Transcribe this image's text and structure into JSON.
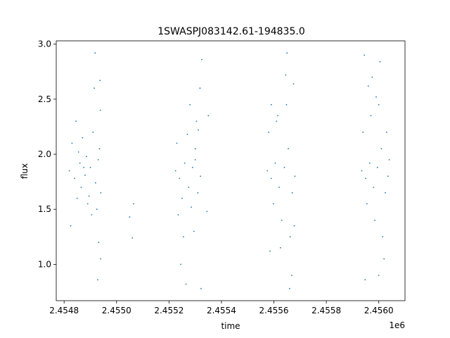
{
  "chart_data": {
    "type": "scatter",
    "title": "1SWASPJ083142.61-194835.0",
    "xlabel": "time",
    "ylabel": "flux",
    "x_offset_label": "1e6",
    "xlim": [
      2454770,
      2456100
    ],
    "ylim": [
      0.67,
      3.03
    ],
    "x_ticks": [
      2454800,
      2455000,
      2455200,
      2455400,
      2455600,
      2455800,
      2456000
    ],
    "x_tick_labels": [
      "2.4548",
      "2.4550",
      "2.4552",
      "2.4554",
      "2.4556",
      "2.4558",
      "2.4560"
    ],
    "y_ticks": [
      1.0,
      1.5,
      2.0,
      2.5,
      3.0
    ],
    "y_tick_labels": [
      "1.0",
      "1.5",
      "2.0",
      "2.5",
      "3.0"
    ],
    "grid": false,
    "marker_color": "#1f77b4",
    "series": [
      {
        "points": [
          [
            2454820,
            1.85
          ],
          [
            2454840,
            1.78
          ],
          [
            2454860,
            1.92
          ],
          [
            2454880,
            1.81
          ],
          [
            2454900,
            1.88
          ],
          [
            2454920,
            1.74
          ],
          [
            2454935,
            2.05
          ],
          [
            2454940,
            1.65
          ],
          [
            2454830,
            2.1
          ],
          [
            2454850,
            1.6
          ],
          [
            2454870,
            2.15
          ],
          [
            2454890,
            1.55
          ],
          [
            2454910,
            2.2
          ],
          [
            2454925,
            1.5
          ],
          [
            2454938,
            2.4
          ],
          [
            2454932,
            1.2
          ],
          [
            2454825,
            1.35
          ],
          [
            2454845,
            2.3
          ],
          [
            2454915,
            2.6
          ],
          [
            2454937,
            2.67
          ],
          [
            2454928,
            0.86
          ],
          [
            2454939,
            1.05
          ],
          [
            2454918,
            2.92
          ],
          [
            2454905,
            1.45
          ],
          [
            2454865,
            1.7
          ],
          [
            2454885,
            1.98
          ],
          [
            2454895,
            1.62
          ],
          [
            2454855,
            2.02
          ],
          [
            2454875,
            1.88
          ],
          [
            2454930,
            1.95
          ],
          [
            2455060,
            1.24
          ],
          [
            2455065,
            1.55
          ],
          [
            2455050,
            1.43
          ],
          [
            2455225,
            1.85
          ],
          [
            2455240,
            1.78
          ],
          [
            2455260,
            1.92
          ],
          [
            2455275,
            1.7
          ],
          [
            2455290,
            1.88
          ],
          [
            2455300,
            2.05
          ],
          [
            2455310,
            1.65
          ],
          [
            2455320,
            1.8
          ],
          [
            2455230,
            2.1
          ],
          [
            2455250,
            1.6
          ],
          [
            2455270,
            2.18
          ],
          [
            2455285,
            1.52
          ],
          [
            2455305,
            2.3
          ],
          [
            2455318,
            2.6
          ],
          [
            2455325,
            2.86
          ],
          [
            2455295,
            1.3
          ],
          [
            2455245,
            1.0
          ],
          [
            2455265,
            0.82
          ],
          [
            2455322,
            0.78
          ],
          [
            2455280,
            2.45
          ],
          [
            2455255,
            1.25
          ],
          [
            2455312,
            2.22
          ],
          [
            2455235,
            1.45
          ],
          [
            2455300,
            1.95
          ],
          [
            2455350,
            2.35
          ],
          [
            2455345,
            1.48
          ],
          [
            2455575,
            1.85
          ],
          [
            2455590,
            1.78
          ],
          [
            2455605,
            1.92
          ],
          [
            2455620,
            1.7
          ],
          [
            2455640,
            1.88
          ],
          [
            2455655,
            2.05
          ],
          [
            2455670,
            1.65
          ],
          [
            2455680,
            1.8
          ],
          [
            2455580,
            2.2
          ],
          [
            2455598,
            1.55
          ],
          [
            2455615,
            2.35
          ],
          [
            2455630,
            1.4
          ],
          [
            2455648,
            2.45
          ],
          [
            2455662,
            1.25
          ],
          [
            2455675,
            2.64
          ],
          [
            2455650,
            2.92
          ],
          [
            2455660,
            0.78
          ],
          [
            2455668,
            0.9
          ],
          [
            2455585,
            1.12
          ],
          [
            2455645,
            2.72
          ],
          [
            2455610,
            2.3
          ],
          [
            2455625,
            1.15
          ],
          [
            2455590,
            2.45
          ],
          [
            2455678,
            1.35
          ],
          [
            2455935,
            1.85
          ],
          [
            2455950,
            1.78
          ],
          [
            2455965,
            1.92
          ],
          [
            2455980,
            1.7
          ],
          [
            2455995,
            1.88
          ],
          [
            2456010,
            2.05
          ],
          [
            2456025,
            1.65
          ],
          [
            2456035,
            1.8
          ],
          [
            2455940,
            2.2
          ],
          [
            2455955,
            1.55
          ],
          [
            2455970,
            2.35
          ],
          [
            2455985,
            1.4
          ],
          [
            2456000,
            2.45
          ],
          [
            2456015,
            1.25
          ],
          [
            2456030,
            2.2
          ],
          [
            2455960,
            2.62
          ],
          [
            2455945,
            2.9
          ],
          [
            2455975,
            2.7
          ],
          [
            2456005,
            2.84
          ],
          [
            2455948,
            0.86
          ],
          [
            2456000,
            0.9
          ],
          [
            2456020,
            1.05
          ],
          [
            2455990,
            2.52
          ],
          [
            2456040,
            1.95
          ]
        ]
      }
    ]
  }
}
